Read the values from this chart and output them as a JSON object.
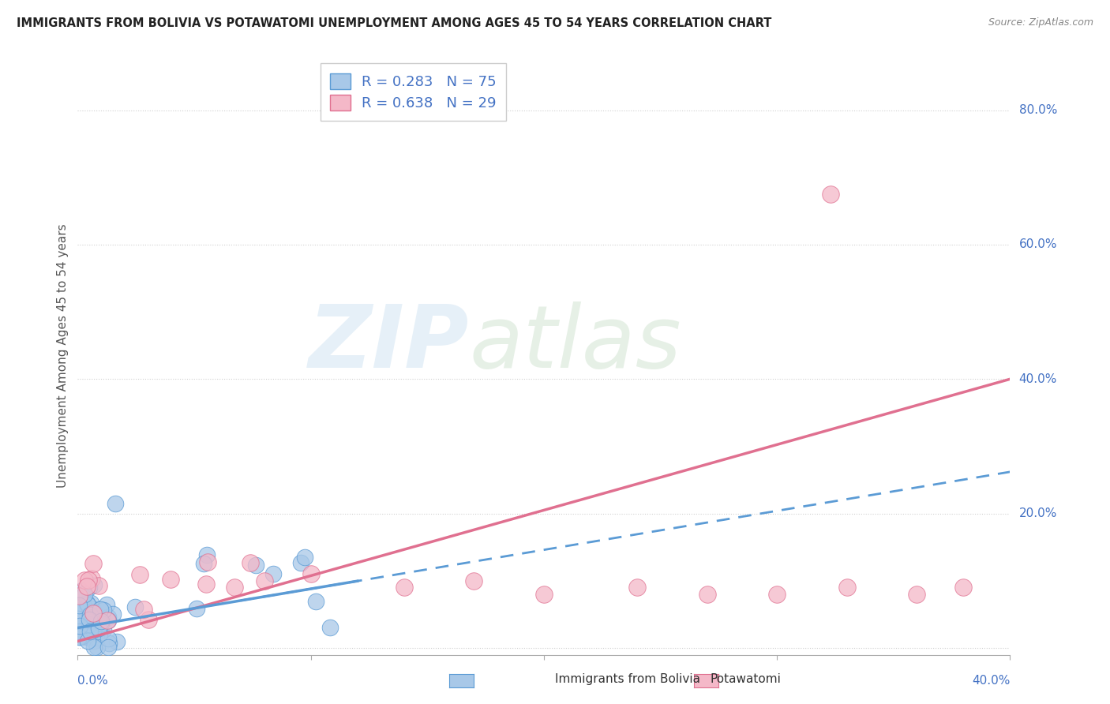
{
  "title": "IMMIGRANTS FROM BOLIVIA VS POTAWATOMI UNEMPLOYMENT AMONG AGES 45 TO 54 YEARS CORRELATION CHART",
  "source": "Source: ZipAtlas.com",
  "ylabel": "Unemployment Among Ages 45 to 54 years",
  "xlim": [
    0.0,
    0.4
  ],
  "ylim": [
    -0.01,
    0.88
  ],
  "ytick_positions": [
    0.0,
    0.2,
    0.4,
    0.6,
    0.8
  ],
  "ytick_labels": [
    "",
    "20.0%",
    "40.0%",
    "60.0%",
    "80.0%"
  ],
  "blue_color": "#a8c8e8",
  "blue_edge_color": "#5b9bd5",
  "blue_line_color": "#5b9bd5",
  "pink_color": "#f4b8c8",
  "pink_edge_color": "#e07090",
  "pink_line_color": "#e07090",
  "R_blue": 0.283,
  "N_blue": 75,
  "R_pink": 0.638,
  "N_pink": 29,
  "tick_label_color": "#4472c4",
  "grid_color": "#d0d0d0",
  "title_color": "#222222",
  "source_color": "#888888",
  "ylabel_color": "#555555"
}
